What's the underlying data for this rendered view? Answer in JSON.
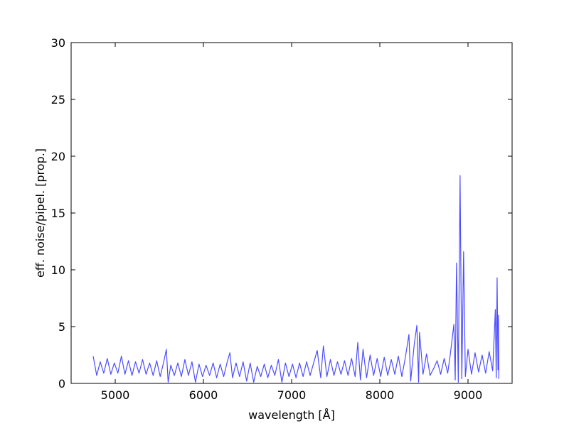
{
  "chart_data": {
    "type": "line",
    "xlabel": "wavelength [Å]",
    "ylabel": "eff. noise/pipel. [prop.]",
    "xlim": [
      4500,
      9500
    ],
    "xticks": [
      5000,
      6000,
      7000,
      8000,
      9000
    ],
    "ylim": [
      0,
      30
    ],
    "yticks": [
      0,
      5,
      10,
      15,
      20,
      25,
      30
    ],
    "grid": false,
    "series": [
      {
        "color": "#4d4dff",
        "x": [
          4750,
          4790,
          4830,
          4870,
          4910,
          4950,
          4990,
          5030,
          5070,
          5110,
          5150,
          5190,
          5230,
          5270,
          5310,
          5350,
          5390,
          5430,
          5470,
          5510,
          5550,
          5580,
          5600,
          5630,
          5670,
          5710,
          5750,
          5790,
          5830,
          5870,
          5910,
          5950,
          5990,
          6030,
          6070,
          6110,
          6150,
          6190,
          6230,
          6270,
          6300,
          6330,
          6370,
          6410,
          6450,
          6490,
          6530,
          6570,
          6610,
          6650,
          6690,
          6730,
          6770,
          6810,
          6850,
          6890,
          6930,
          6970,
          7010,
          7050,
          7090,
          7130,
          7170,
          7210,
          7250,
          7290,
          7330,
          7360,
          7400,
          7440,
          7480,
          7520,
          7560,
          7600,
          7640,
          7680,
          7720,
          7750,
          7780,
          7810,
          7850,
          7890,
          7930,
          7970,
          8010,
          8050,
          8090,
          8130,
          8170,
          8210,
          8250,
          8290,
          8330,
          8350,
          8390,
          8420,
          8440,
          8450,
          8490,
          8530,
          8570,
          8610,
          8650,
          8690,
          8730,
          8770,
          8800,
          8840,
          8855,
          8870,
          8890,
          8910,
          8930,
          8950,
          8970,
          9000,
          9040,
          9080,
          9120,
          9160,
          9200,
          9240,
          9280,
          9310,
          9320,
          9330,
          9340,
          9345,
          9350
        ],
        "values": [
          2.4,
          0.7,
          1.9,
          0.9,
          2.2,
          0.8,
          1.8,
          0.9,
          2.4,
          0.8,
          2.0,
          0.7,
          1.9,
          0.9,
          2.1,
          0.8,
          1.8,
          0.7,
          2.0,
          0.6,
          1.9,
          3.0,
          0.1,
          1.6,
          0.7,
          1.8,
          0.6,
          2.1,
          0.7,
          1.9,
          0.1,
          1.7,
          0.6,
          1.6,
          0.7,
          1.8,
          0.5,
          1.7,
          0.6,
          1.9,
          2.7,
          0.5,
          1.8,
          0.6,
          1.9,
          0.2,
          1.8,
          0.1,
          1.5,
          0.6,
          1.7,
          0.5,
          1.6,
          0.7,
          2.1,
          0.1,
          1.8,
          0.6,
          1.7,
          0.5,
          1.8,
          0.6,
          1.9,
          0.7,
          1.8,
          2.9,
          0.5,
          3.3,
          0.6,
          2.1,
          0.7,
          1.9,
          0.8,
          2.0,
          0.7,
          2.2,
          0.6,
          3.6,
          0.3,
          3.0,
          0.5,
          2.5,
          0.7,
          2.2,
          0.6,
          2.3,
          0.7,
          2.1,
          0.8,
          2.4,
          0.6,
          2.3,
          4.3,
          0.2,
          3.4,
          5.1,
          0.1,
          4.5,
          0.8,
          2.6,
          0.7,
          1.3,
          2.0,
          0.8,
          2.2,
          0.9,
          2.6,
          5.2,
          0.3,
          10.6,
          0.1,
          18.3,
          0.4,
          11.6,
          0.6,
          3.0,
          0.8,
          2.7,
          1.0,
          2.5,
          0.9,
          2.8,
          1.1,
          6.5,
          0.5,
          9.3,
          1.2,
          6.0,
          0.4
        ]
      }
    ]
  }
}
